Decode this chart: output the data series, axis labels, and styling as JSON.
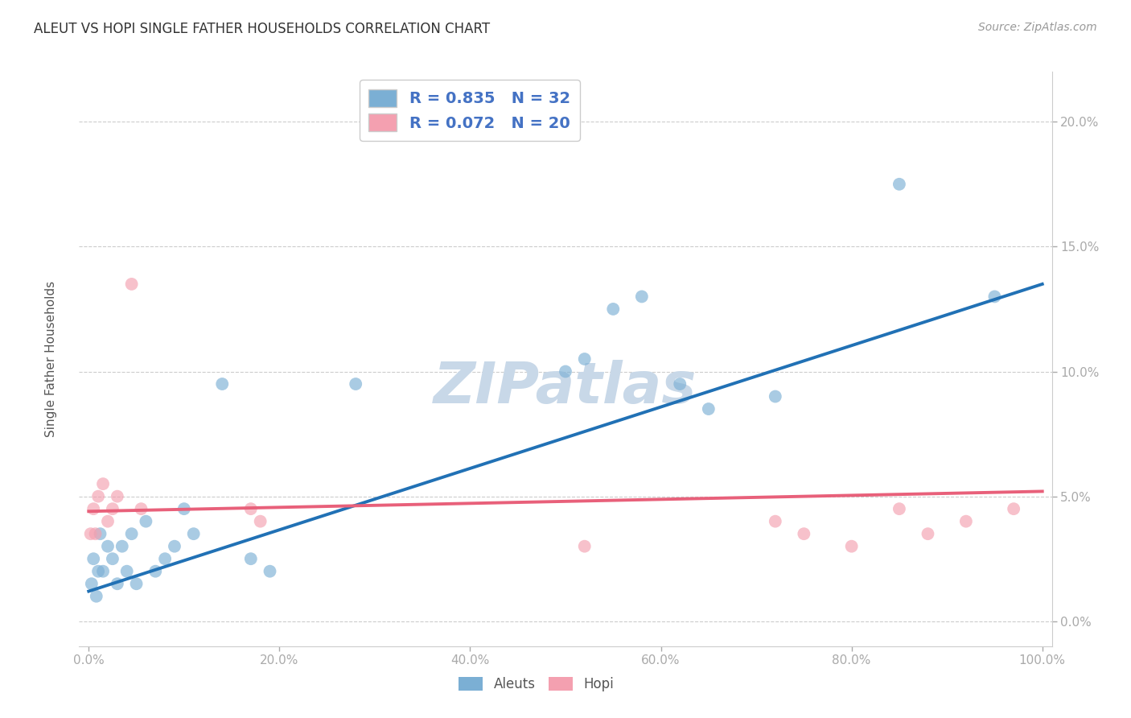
{
  "title": "ALEUT VS HOPI SINGLE FATHER HOUSEHOLDS CORRELATION CHART",
  "source": "Source: ZipAtlas.com",
  "ylabel_label": "Single Father Households",
  "x_tick_labels": [
    "0.0%",
    "20.0%",
    "40.0%",
    "60.0%",
    "80.0%",
    "100.0%"
  ],
  "x_tick_vals": [
    0,
    20,
    40,
    60,
    80,
    100
  ],
  "y_tick_labels": [
    "0.0%",
    "5.0%",
    "10.0%",
    "15.0%",
    "20.0%"
  ],
  "y_tick_vals": [
    0,
    5,
    10,
    15,
    20
  ],
  "xlim": [
    -1,
    101
  ],
  "ylim": [
    -1.0,
    22.0
  ],
  "aleuts_color": "#7bafd4",
  "hopi_color": "#f4a0b0",
  "aleuts_line_color": "#2171b5",
  "hopi_line_color": "#e8607a",
  "legend_r_aleuts": "R = 0.835",
  "legend_n_aleuts": "N = 32",
  "legend_r_hopi": "R = 0.072",
  "legend_n_hopi": "N = 20",
  "background_color": "#ffffff",
  "watermark_color": "#c8d8e8",
  "grid_color": "#cccccc",
  "aleuts_x": [
    0.3,
    0.5,
    0.8,
    1.0,
    1.2,
    1.5,
    2.0,
    2.5,
    3.0,
    3.5,
    4.0,
    4.5,
    5.0,
    6.0,
    7.0,
    8.0,
    9.0,
    10.0,
    11.0,
    14.0,
    17.0,
    19.0,
    28.0,
    50.0,
    52.0,
    55.0,
    58.0,
    62.0,
    65.0,
    72.0,
    85.0,
    95.0
  ],
  "aleuts_y": [
    1.5,
    2.5,
    1.0,
    2.0,
    3.5,
    2.0,
    3.0,
    2.5,
    1.5,
    3.0,
    2.0,
    3.5,
    1.5,
    4.0,
    2.0,
    2.5,
    3.0,
    4.5,
    3.5,
    9.5,
    2.5,
    2.0,
    9.5,
    10.0,
    10.5,
    12.5,
    13.0,
    9.5,
    8.5,
    9.0,
    17.5,
    13.0
  ],
  "hopi_x": [
    0.2,
    0.5,
    0.7,
    1.0,
    1.5,
    2.0,
    2.5,
    3.0,
    4.5,
    5.5,
    17.0,
    18.0,
    52.0,
    72.0,
    75.0,
    80.0,
    85.0,
    88.0,
    92.0,
    97.0
  ],
  "hopi_y": [
    3.5,
    4.5,
    3.5,
    5.0,
    5.5,
    4.0,
    4.5,
    5.0,
    13.5,
    4.5,
    4.5,
    4.0,
    3.0,
    4.0,
    3.5,
    3.0,
    4.5,
    3.5,
    4.0,
    4.5
  ],
  "aleuts_line_x0": 0,
  "aleuts_line_y0": 1.2,
  "aleuts_line_x1": 100,
  "aleuts_line_y1": 13.5,
  "hopi_line_x0": 0,
  "hopi_line_y0": 4.4,
  "hopi_line_x1": 100,
  "hopi_line_y1": 5.2
}
